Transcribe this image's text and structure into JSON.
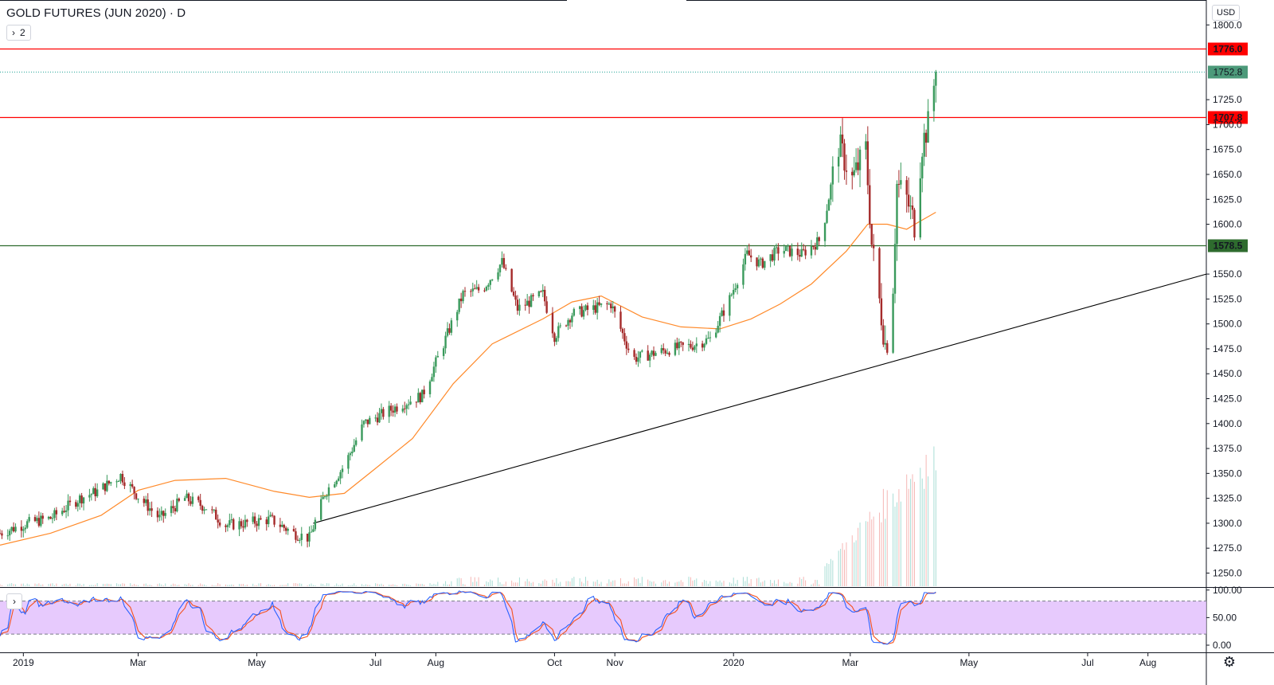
{
  "header": {
    "symbol_title": "GOLD FUTURES (JUN 2020) · D",
    "collapse_count": "2",
    "currency": "USD"
  },
  "colors": {
    "up": "#26a69a",
    "down": "#ef5350",
    "candle_up_body": "#3a9a5c",
    "candle_down_body": "#a52a2a",
    "ma": "#ff8a2a",
    "resistance": "#ff0000",
    "support": "#2e6b2e",
    "trendline": "#000000",
    "stoch_k": "#2962ff",
    "stoch_d": "#f4511e",
    "stoch_band": "#e1bdfc"
  },
  "chart_data": [
    {
      "type": "candlestick",
      "title": "GOLD FUTURES (JUN 2020) · D",
      "y_axis_ticks": [
        1250,
        1275,
        1300,
        1325,
        1350,
        1375,
        1400,
        1425,
        1450,
        1475,
        1500,
        1525,
        1550,
        1575,
        1600,
        1625,
        1650,
        1675,
        1700,
        1725,
        1750,
        1775,
        1800
      ],
      "y_tick_labels": [
        "1250.0",
        "1275.0",
        "1300.0",
        "1325.0",
        "1350.0",
        "1375.0",
        "1400.0",
        "1425.0",
        "1450.0",
        "1475.0",
        "1500.0",
        "1525.0",
        "1550.0",
        "",
        "1600.0",
        "1625.0",
        "1650.0",
        "1675.0",
        "1700.0",
        "1725.0",
        "",
        "",
        "1800.0"
      ],
      "ylim": [
        1236,
        1825
      ],
      "x_axis_labels": [
        "2019",
        "Mar",
        "May",
        "Jul",
        "Aug",
        "Oct",
        "Nov",
        "2020",
        "Mar",
        "May",
        "Jul",
        "Aug"
      ],
      "x_label_dates": [
        "2019-01-01",
        "2019-03-01",
        "2019-05-01",
        "2019-07-01",
        "2019-08-01",
        "2019-10-01",
        "2019-11-01",
        "2020-01-01",
        "2020-03-01",
        "2020-05-01",
        "2020-07-01",
        "2020-08-01"
      ],
      "xlim": [
        "2018-12-20",
        "2020-08-31"
      ],
      "close_path": [
        [
          "2018-12-20",
          1290
        ],
        [
          "2019-01-03",
          1300
        ],
        [
          "2019-01-15",
          1305
        ],
        [
          "2019-01-30",
          1325
        ],
        [
          "2019-02-08",
          1332
        ],
        [
          "2019-02-20",
          1348
        ],
        [
          "2019-03-01",
          1327
        ],
        [
          "2019-03-12",
          1305
        ],
        [
          "2019-03-25",
          1325
        ],
        [
          "2019-04-05",
          1316
        ],
        [
          "2019-04-15",
          1298
        ],
        [
          "2019-04-25",
          1300
        ],
        [
          "2019-05-08",
          1304
        ],
        [
          "2019-05-20",
          1290
        ],
        [
          "2019-05-28",
          1285
        ],
        [
          "2019-06-05",
          1330
        ],
        [
          "2019-06-15",
          1358
        ],
        [
          "2019-06-25",
          1400
        ],
        [
          "2019-07-05",
          1410
        ],
        [
          "2019-07-15",
          1420
        ],
        [
          "2019-07-25",
          1428
        ],
        [
          "2019-08-05",
          1480
        ],
        [
          "2019-08-15",
          1530
        ],
        [
          "2019-08-25",
          1535
        ],
        [
          "2019-09-04",
          1562
        ],
        [
          "2019-09-12",
          1515
        ],
        [
          "2019-09-25",
          1530
        ],
        [
          "2019-10-01",
          1488
        ],
        [
          "2019-10-10",
          1510
        ],
        [
          "2019-10-20",
          1515
        ],
        [
          "2019-10-30",
          1520
        ],
        [
          "2019-11-10",
          1465
        ],
        [
          "2019-11-20",
          1470
        ],
        [
          "2019-11-30",
          1475
        ],
        [
          "2019-12-10",
          1478
        ],
        [
          "2019-12-20",
          1485
        ],
        [
          "2019-12-30",
          1525
        ],
        [
          "2020-01-08",
          1570
        ],
        [
          "2020-01-15",
          1560
        ],
        [
          "2020-01-25",
          1575
        ],
        [
          "2020-02-05",
          1570
        ],
        [
          "2020-02-15",
          1585
        ],
        [
          "2020-02-24",
          1680
        ],
        [
          "2020-03-02",
          1645
        ],
        [
          "2020-03-09",
          1675
        ],
        [
          "2020-03-12",
          1580
        ],
        [
          "2020-03-19",
          1480
        ],
        [
          "2020-03-22",
          1490
        ],
        [
          "2020-03-25",
          1640
        ],
        [
          "2020-03-30",
          1625
        ],
        [
          "2020-04-03",
          1600
        ],
        [
          "2020-04-07",
          1680
        ],
        [
          "2020-04-10",
          1700
        ],
        [
          "2020-04-14",
          1752.8
        ]
      ],
      "volume_range_2019": [
        2000,
        8000
      ],
      "volume_peak_mar_apr_2020": 180000,
      "moving_average": [
        [
          "2018-12-20",
          1278
        ],
        [
          "2019-01-15",
          1290
        ],
        [
          "2019-02-10",
          1308
        ],
        [
          "2019-03-01",
          1333
        ],
        [
          "2019-03-20",
          1343
        ],
        [
          "2019-04-15",
          1345
        ],
        [
          "2019-05-10",
          1332
        ],
        [
          "2019-05-28",
          1326
        ],
        [
          "2019-06-15",
          1330
        ],
        [
          "2019-07-01",
          1355
        ],
        [
          "2019-07-20",
          1385
        ],
        [
          "2019-08-10",
          1440
        ],
        [
          "2019-08-30",
          1480
        ],
        [
          "2019-09-25",
          1505
        ],
        [
          "2019-10-10",
          1522
        ],
        [
          "2019-10-25",
          1528
        ],
        [
          "2019-11-15",
          1507
        ],
        [
          "2019-12-05",
          1497
        ],
        [
          "2019-12-25",
          1495
        ],
        [
          "2020-01-10",
          1505
        ],
        [
          "2020-01-25",
          1520
        ],
        [
          "2020-02-10",
          1540
        ],
        [
          "2020-02-28",
          1573
        ],
        [
          "2020-03-10",
          1600
        ],
        [
          "2020-03-20",
          1600
        ],
        [
          "2020-03-30",
          1595
        ],
        [
          "2020-04-05",
          1602
        ],
        [
          "2020-04-14",
          1612
        ]
      ],
      "horizontal_levels": [
        {
          "value": 1776.0,
          "label": "1776.0",
          "style": "resistance"
        },
        {
          "value": 1707.8,
          "label": "1707.8",
          "style": "resistance"
        },
        {
          "value": 1578.5,
          "label": "1578.5",
          "style": "support"
        }
      ],
      "last_price": {
        "value": 1752.8,
        "label": "1752.8"
      },
      "trendline": {
        "from": [
          "2019-05-30",
          1300
        ],
        "to": [
          "2020-08-31",
          1550
        ]
      }
    },
    {
      "type": "line",
      "indicator": "stochastic",
      "y_axis_ticks": [
        0,
        50,
        100
      ],
      "y_tick_labels": [
        "0.00",
        "50.00",
        "100.00"
      ],
      "ylim": [
        -13,
        104
      ],
      "band": [
        20,
        80
      ]
    }
  ]
}
